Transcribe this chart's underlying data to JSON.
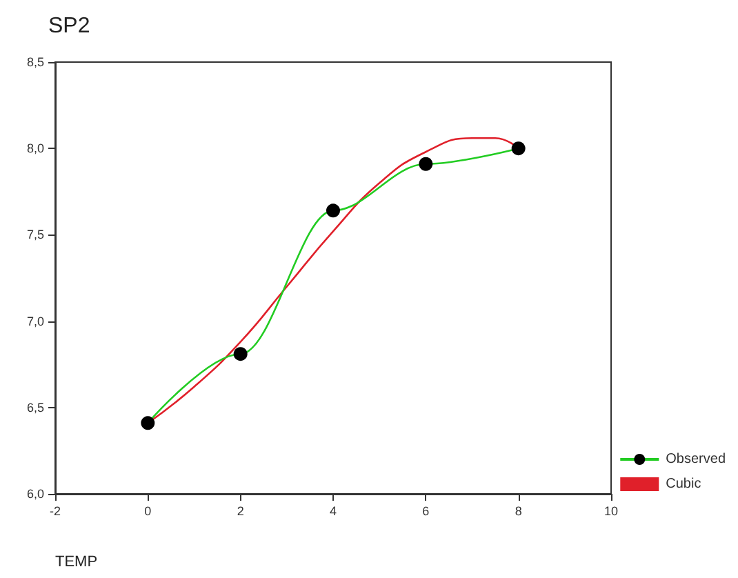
{
  "chart_data": {
    "type": "line",
    "title": "SP2",
    "xlabel": "TEMP",
    "xlim": [
      -2,
      10
    ],
    "xticks": [
      -2,
      0,
      2,
      4,
      6,
      8,
      10
    ],
    "ylim": [
      6,
      8.5
    ],
    "yticks": [
      {
        "value": 6,
        "label": "6,0"
      },
      {
        "value": 6.5,
        "label": "6,5"
      },
      {
        "value": 7,
        "label": "7,0"
      },
      {
        "value": 7.5,
        "label": "7,5"
      },
      {
        "value": 8,
        "label": "8,0"
      },
      {
        "value": 8.5,
        "label": "8,5"
      }
    ],
    "series": [
      {
        "name": "Observed",
        "color": "#22cc22",
        "marker": "circle",
        "x": [
          0,
          2,
          4,
          6,
          8
        ],
        "values": [
          6.41,
          6.81,
          7.64,
          7.91,
          8.0
        ]
      },
      {
        "name": "Cubic",
        "color": "#e0202a",
        "marker": "none",
        "x": [
          0,
          1,
          2,
          3,
          4,
          5,
          6,
          7,
          7.5,
          8
        ],
        "values": [
          6.41,
          6.62,
          6.88,
          7.2,
          7.52,
          7.8,
          7.98,
          8.06,
          8.06,
          8.0
        ]
      }
    ],
    "grid": false,
    "legend": "bottom right"
  }
}
